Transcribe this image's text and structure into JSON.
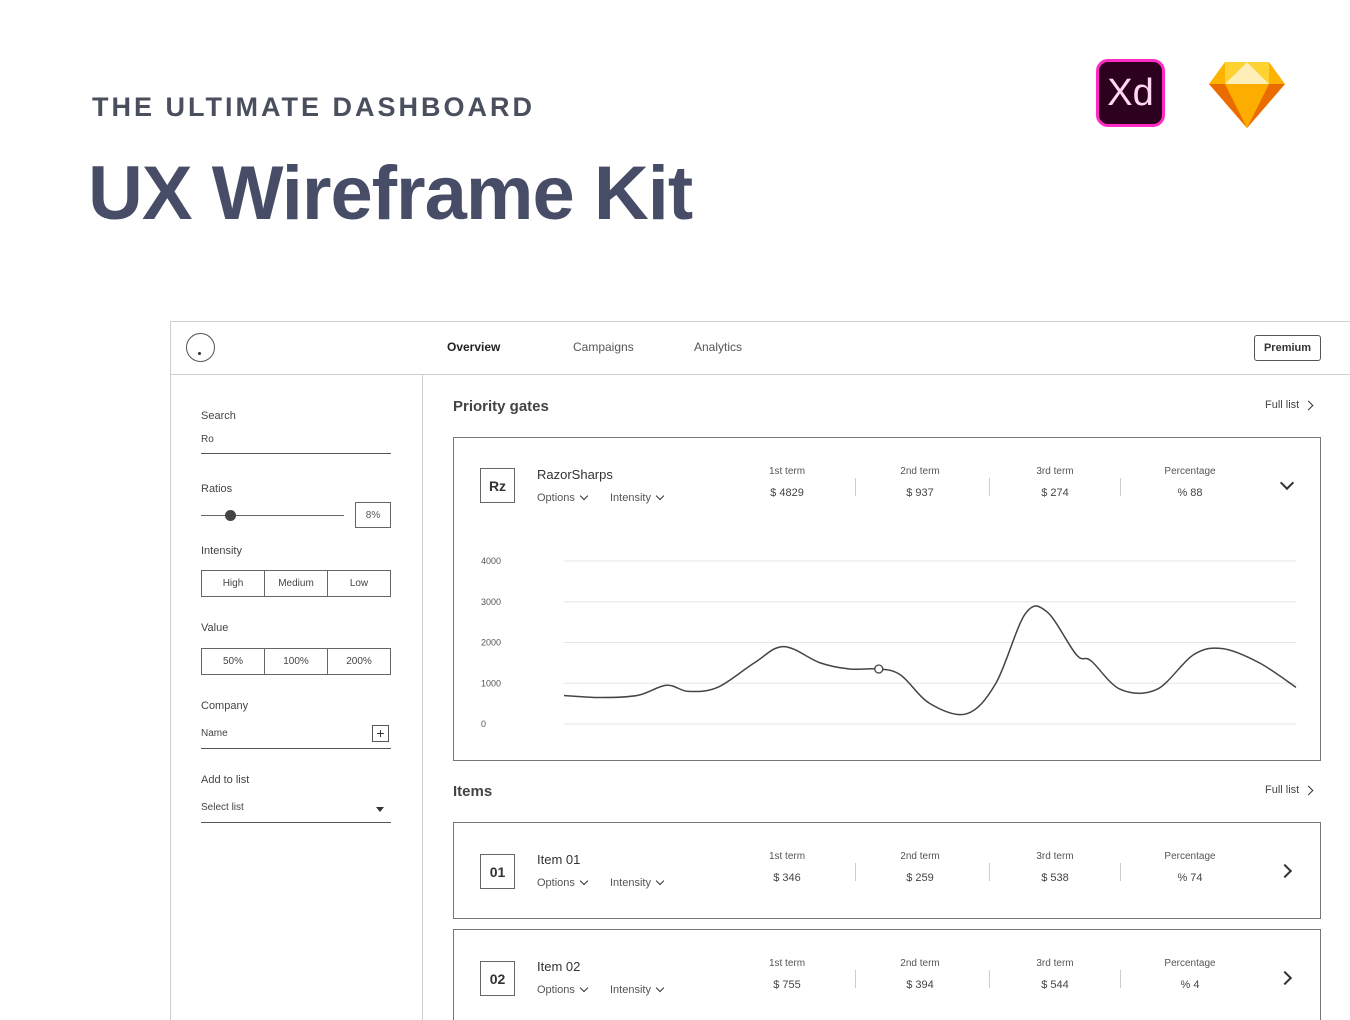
{
  "header": {
    "eyebrow": "THE ULTIMATE DASHBOARD",
    "title": "UX Wireframe Kit",
    "xd_logo_text": "Xd",
    "icons": [
      "adobe-xd-logo",
      "sketch-logo"
    ]
  },
  "colors": {
    "title": "#474d66",
    "xd_bg": "#2e001f",
    "xd_border": "#ff2bc2",
    "sketch_primary": "#fdb300"
  },
  "topbar": {
    "nav": [
      "Overview",
      "Campaigns",
      "Analytics"
    ],
    "active_nav": "Overview",
    "premium_label": "Premium"
  },
  "sidebar": {
    "search_label": "Search",
    "search_value": "Ro",
    "ratios_label": "Ratios",
    "ratio_value": "8%",
    "intensity_label": "Intensity",
    "intensity_options": [
      "High",
      "Medium",
      "Low"
    ],
    "value_label": "Value",
    "value_options": [
      "50%",
      "100%",
      "200%"
    ],
    "company_label": "Company",
    "company_placeholder": "Name",
    "add_to_list_label": "Add to list",
    "select_list_placeholder": "Select list"
  },
  "priority": {
    "title": "Priority gates",
    "full_list": "Full list",
    "card": {
      "badge": "Rz",
      "name": "RazorSharps",
      "options": "Options",
      "intensity": "Intensity",
      "terms": [
        {
          "label": "1st term",
          "value": "$ 4829"
        },
        {
          "label": "2nd term",
          "value": "$ 937"
        },
        {
          "label": "3rd term",
          "value": "$ 274"
        },
        {
          "label": "Percentage",
          "value": "% 88"
        }
      ]
    }
  },
  "chart_data": {
    "type": "line",
    "ylim": [
      0,
      4000
    ],
    "yticks": [
      "4000",
      "3000",
      "2000",
      "1000",
      "0"
    ],
    "grid": true,
    "series": [
      {
        "x": [
          0,
          5,
          10,
          14,
          17,
          21,
          26,
          30,
          35,
          39,
          43,
          46,
          50,
          55,
          59,
          63,
          66,
          70,
          72,
          76,
          81,
          86,
          90,
          95,
          100
        ],
        "values": [
          700,
          650,
          700,
          950,
          800,
          900,
          1500,
          1900,
          1500,
          1350,
          1350,
          1200,
          500,
          250,
          1000,
          2700,
          2750,
          1700,
          1550,
          850,
          850,
          1700,
          1850,
          1500,
          900
        ]
      }
    ],
    "highlight_index": 10
  },
  "items": {
    "title": "Items",
    "full_list": "Full list",
    "rows": [
      {
        "badge": "01",
        "name": "Item 01",
        "options": "Options",
        "intensity": "Intensity",
        "terms": [
          {
            "label": "1st term",
            "value": "$ 346"
          },
          {
            "label": "2nd term",
            "value": "$ 259"
          },
          {
            "label": "3rd term",
            "value": "$ 538"
          },
          {
            "label": "Percentage",
            "value": "% 74"
          }
        ]
      },
      {
        "badge": "02",
        "name": "Item 02",
        "options": "Options",
        "intensity": "Intensity",
        "terms": [
          {
            "label": "1st term",
            "value": "$ 755"
          },
          {
            "label": "2nd term",
            "value": "$ 394"
          },
          {
            "label": "3rd term",
            "value": "$ 544"
          },
          {
            "label": "Percentage",
            "value": "% 4"
          }
        ]
      }
    ]
  }
}
